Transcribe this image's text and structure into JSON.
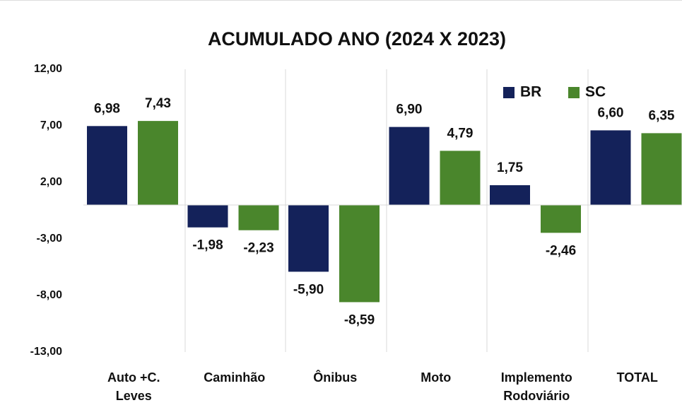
{
  "chart_data": {
    "type": "bar",
    "title": "ACUMULADO ANO (2024 X 2023)",
    "categories": [
      "Auto +C. Leves",
      "Caminhão",
      "Ônibus",
      "Moto",
      "Implemento Rodoviário",
      "TOTAL"
    ],
    "series": [
      {
        "name": "BR",
        "color": "#14225a",
        "values": [
          6.98,
          -1.98,
          -5.9,
          6.9,
          1.75,
          6.6
        ],
        "value_labels": [
          "6,98",
          "-1,98",
          "-5,90",
          "6,90",
          "1,75",
          "6,60"
        ]
      },
      {
        "name": "SC",
        "color": "#4a862c",
        "values": [
          7.43,
          -2.23,
          -8.59,
          4.79,
          -2.46,
          6.35
        ],
        "value_labels": [
          "7,43",
          "-2,23",
          "-8,59",
          "4,79",
          "-2,46",
          "6,35"
        ]
      }
    ],
    "ylim": [
      -13,
      12
    ],
    "yticks": [
      {
        "value": -13,
        "label": "-13,00"
      },
      {
        "value": -8,
        "label": "-8,00"
      },
      {
        "value": -3,
        "label": "-3,00"
      },
      {
        "value": 2,
        "label": "2,00"
      },
      {
        "value": 7,
        "label": "7,00"
      },
      {
        "value": 12,
        "label": "12,00"
      }
    ],
    "legend": "top-right"
  }
}
